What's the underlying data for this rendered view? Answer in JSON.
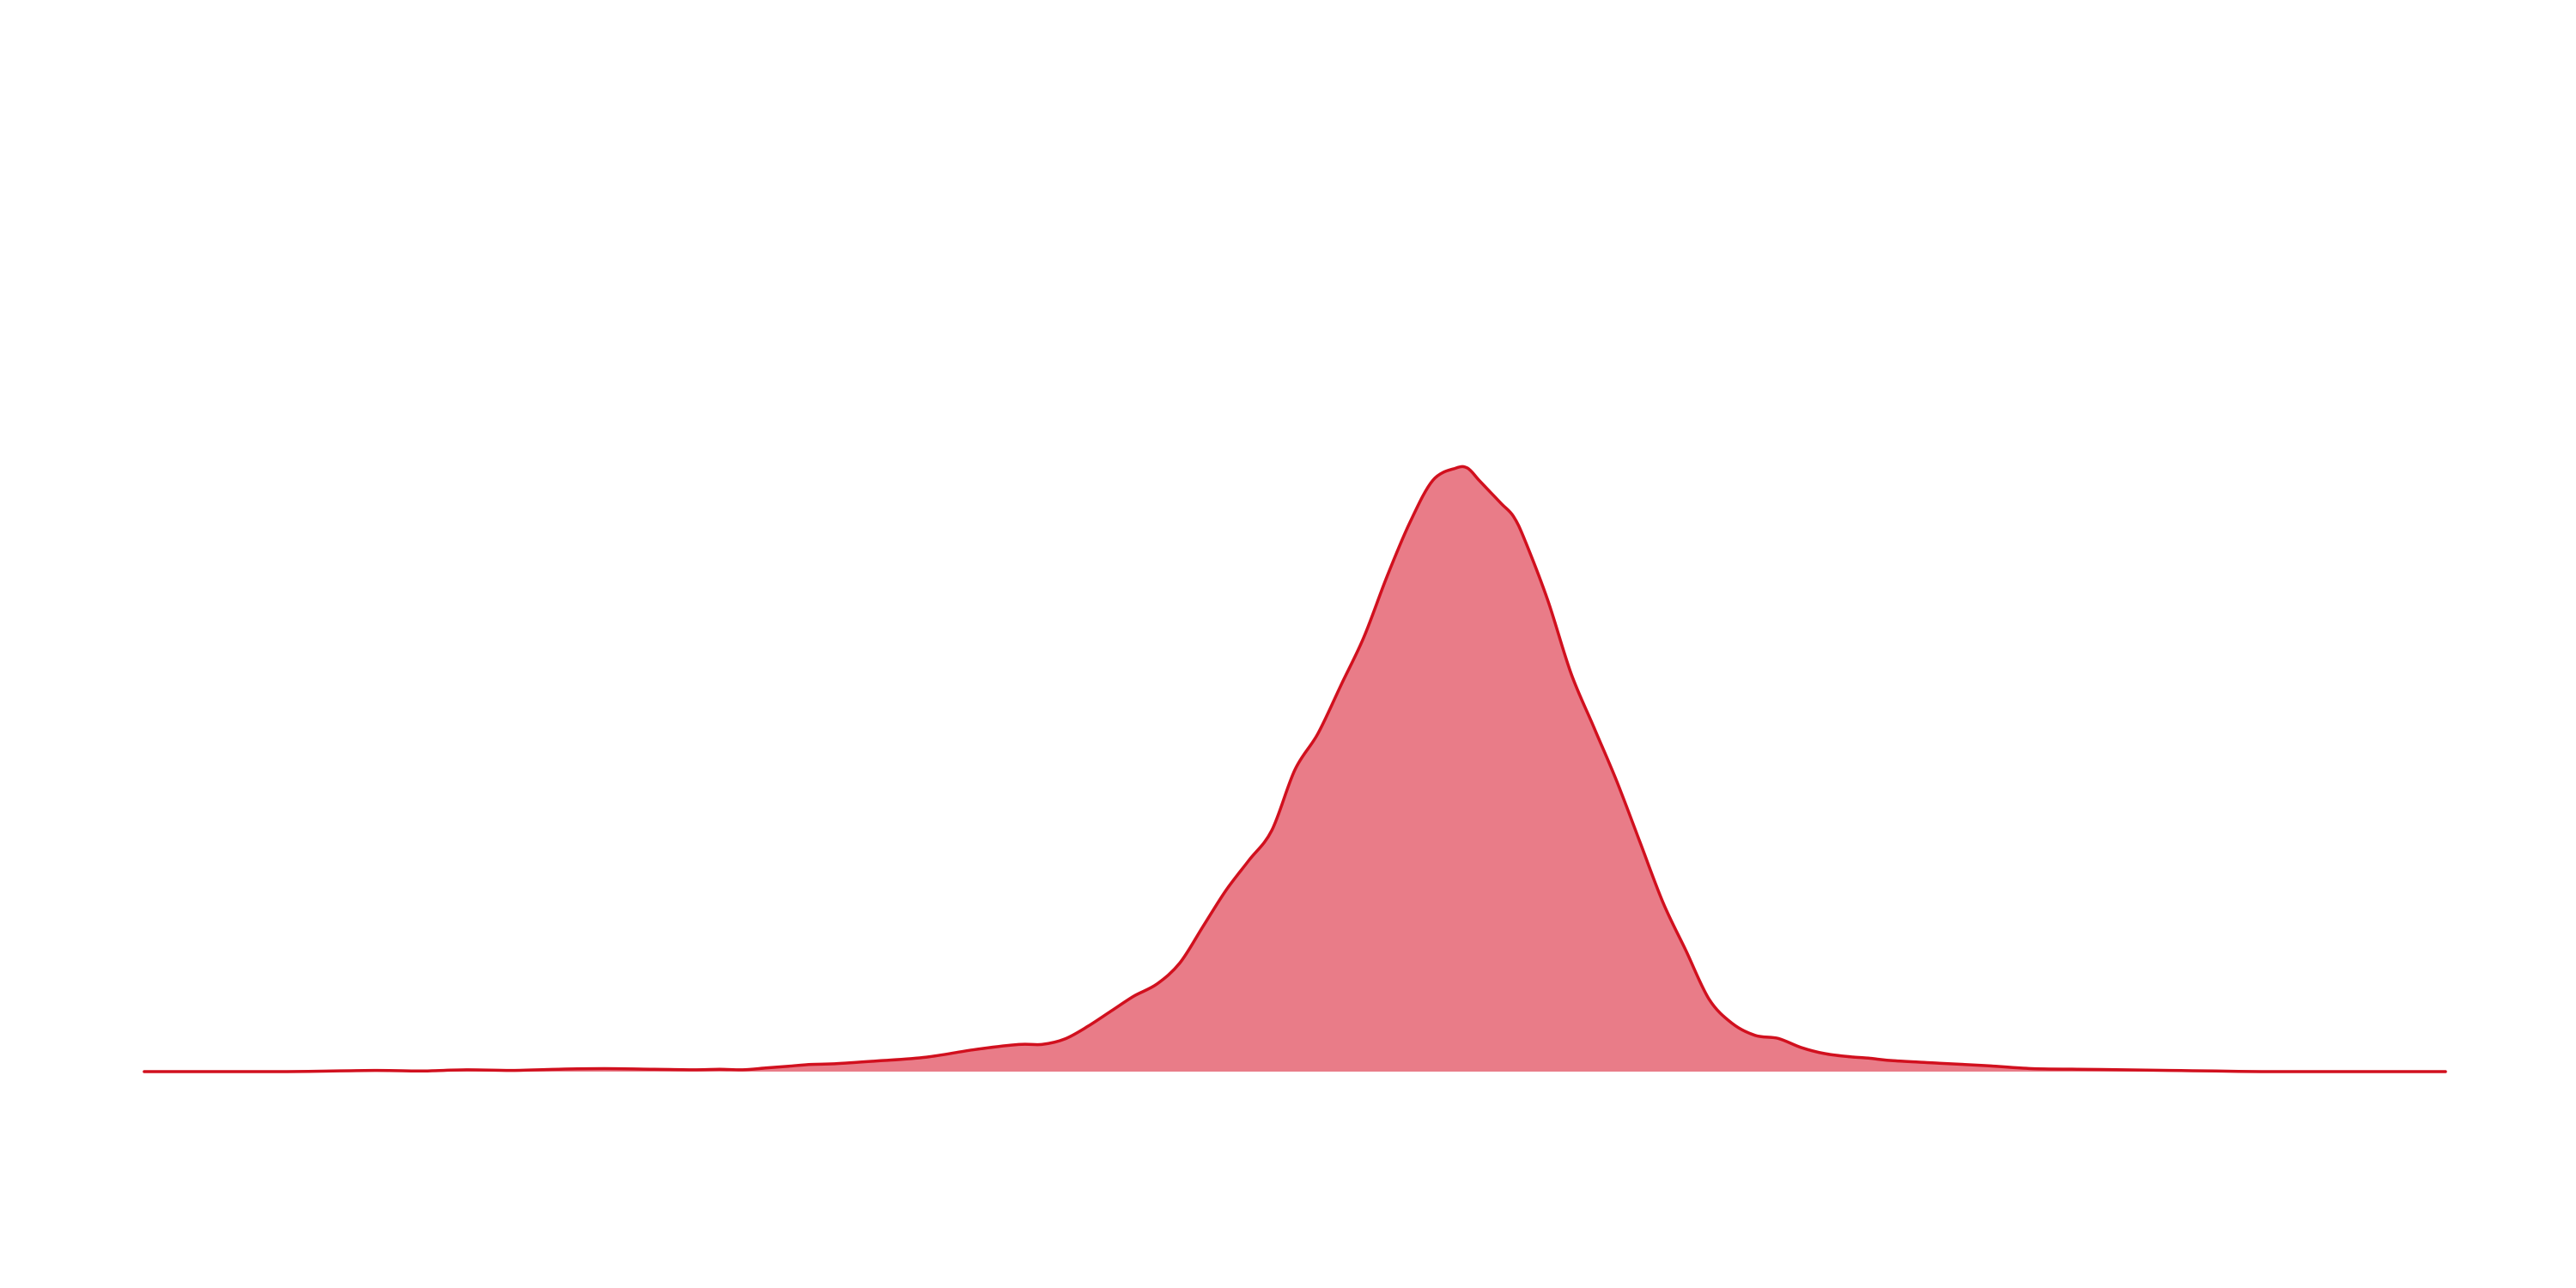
{
  "chart_data": {
    "type": "area",
    "title": "",
    "xlabel": "",
    "ylabel": "",
    "grid": false,
    "axes_visible": false,
    "legend": "none",
    "colors": {
      "fill": "#e04a5a",
      "fill_opacity": 0.72,
      "line": "#d1101e",
      "background": "#ffffff"
    },
    "xlim": [
      0,
      100
    ],
    "ylim": [
      0,
      1.05
    ],
    "series": [
      {
        "x": [
          0,
          6,
          10,
          12,
          14,
          16,
          18,
          20,
          22,
          24,
          25,
          26,
          27,
          28,
          29,
          30,
          32,
          34,
          36,
          38,
          39,
          40,
          41,
          42,
          43,
          44,
          45,
          46,
          47,
          48,
          49,
          50,
          51,
          52,
          53,
          54,
          55,
          56,
          57,
          57.5,
          58,
          58.5,
          59,
          59.5,
          60,
          61,
          62,
          63,
          64,
          65,
          66,
          67,
          68,
          69,
          70,
          71,
          72,
          73,
          74,
          75,
          76,
          78,
          80,
          82,
          84,
          86,
          88,
          90,
          92,
          94,
          96,
          98,
          100
        ],
        "y": [
          0,
          0,
          0.002,
          0.001,
          0.003,
          0.002,
          0.004,
          0.005,
          0.004,
          0.003,
          0.004,
          0.003,
          0.006,
          0.009,
          0.012,
          0.013,
          0.018,
          0.024,
          0.036,
          0.045,
          0.045,
          0.054,
          0.075,
          0.1,
          0.125,
          0.145,
          0.18,
          0.24,
          0.3,
          0.35,
          0.4,
          0.5,
          0.56,
          0.64,
          0.72,
          0.82,
          0.91,
          0.98,
          1.0,
          1.0,
          0.98,
          0.96,
          0.94,
          0.92,
          0.88,
          0.78,
          0.66,
          0.57,
          0.48,
          0.38,
          0.28,
          0.2,
          0.12,
          0.08,
          0.06,
          0.055,
          0.04,
          0.03,
          0.025,
          0.022,
          0.018,
          0.014,
          0.01,
          0.005,
          0.004,
          0.003,
          0.002,
          0.001,
          0,
          0,
          0,
          0,
          0
        ]
      }
    ]
  }
}
